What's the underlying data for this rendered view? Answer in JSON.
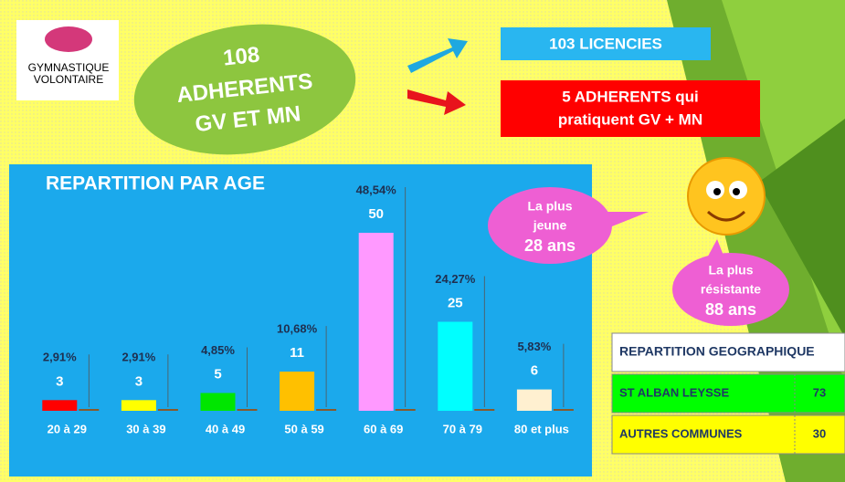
{
  "logo": {
    "line1": "GYMNASTIQUE",
    "line2": "VOLONTAIRE"
  },
  "badge": {
    "line1": "108",
    "line2": "ADHERENTS",
    "line3": "GV ET MN"
  },
  "boxes": {
    "licencies": "103 LICENCIES",
    "both_line1": "5 ADHERENTS qui",
    "both_line2": "pratiquent GV + MN"
  },
  "bubbles": {
    "young": [
      "La plus",
      "jeune",
      "28 ans"
    ],
    "old": [
      "La plus",
      "résistante",
      "88 ans"
    ]
  },
  "chart_data": {
    "type": "bar",
    "title": "REPARTITION PAR AGE",
    "categories": [
      "20 à 29",
      "30 à 39",
      "40 à 49",
      "50 à 59",
      "60 à 69",
      "70 à 79",
      "80 et plus"
    ],
    "values": [
      3,
      3,
      5,
      11,
      50,
      25,
      6
    ],
    "colors": [
      "#ff0000",
      "#ffff00",
      "#00e600",
      "#ffc000",
      "#ff99ff",
      "#00ffff",
      "#fff0d0"
    ],
    "percentages": [
      2.91,
      2.91,
      4.85,
      10.68,
      48.54,
      24.27,
      5.83
    ],
    "percentage_labels": [
      "2,91%",
      "2,91%",
      "4,85%",
      "10,68%",
      "48,54%",
      "24,27%",
      "5,83%"
    ],
    "ylim": [
      0,
      50
    ]
  },
  "table": {
    "header": "REPARTITION GEOGRAPHIQUE",
    "rows": [
      [
        "ST ALBAN LEYSSE",
        "73"
      ],
      [
        "AUTRES COMMUNES",
        "30"
      ]
    ]
  }
}
